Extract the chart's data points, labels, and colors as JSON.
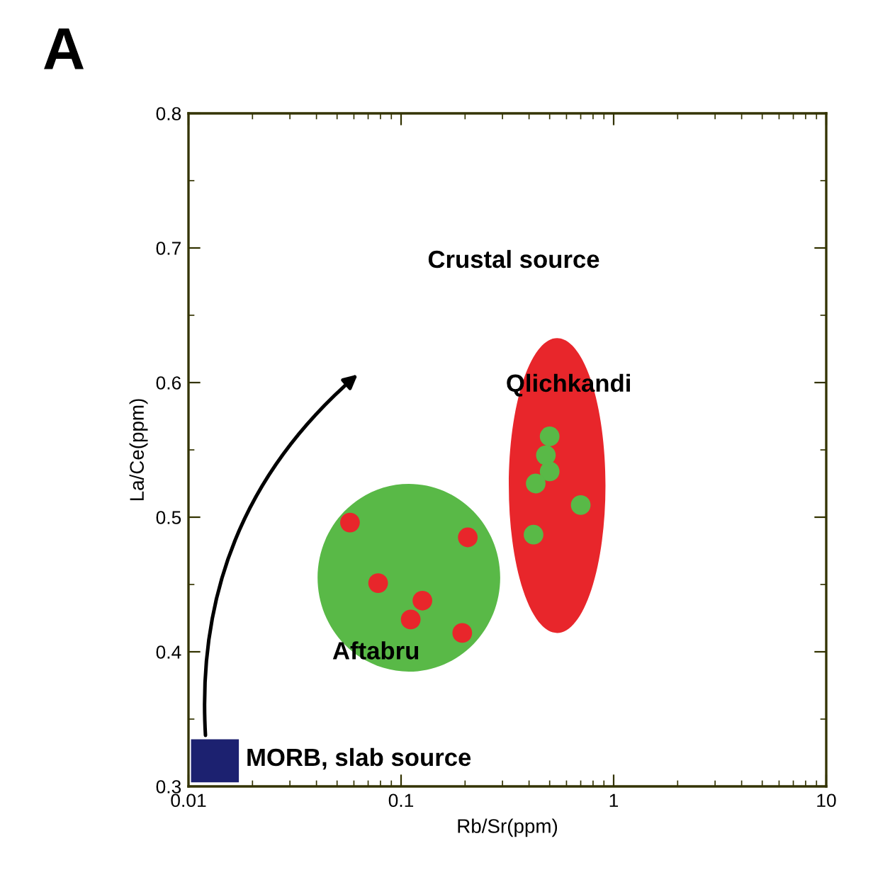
{
  "chart_data": {
    "type": "scatter",
    "title": "A",
    "xlabel": "Rb/Sr(ppm)",
    "ylabel": "La/Ce(ppm)",
    "log": "x",
    "xlim": [
      0.01,
      10
    ],
    "xticks": [
      0.01,
      0.1,
      1,
      10
    ],
    "ylim": [
      0.3,
      0.8
    ],
    "yticks": [
      0.3,
      0.4,
      0.5,
      0.6,
      0.7,
      0.8
    ],
    "grid": false,
    "marker": "circle",
    "annotations": [
      "Crustal source",
      "MORB, slab source"
    ],
    "series": [
      {
        "name": "Aftabru",
        "color": "#e8262b",
        "x": [
          0.0575,
          0.206,
          0.078,
          0.126,
          0.111,
          0.194
        ],
        "values": [
          0.496,
          0.485,
          0.451,
          0.438,
          0.424,
          0.414
        ]
      },
      {
        "name": "Qlichkandi",
        "color": "#59b947",
        "x": [
          0.5,
          0.48,
          0.5,
          0.43,
          0.7,
          0.42
        ],
        "values": [
          0.56,
          0.546,
          0.534,
          0.525,
          0.509,
          0.487
        ]
      }
    ]
  }
}
